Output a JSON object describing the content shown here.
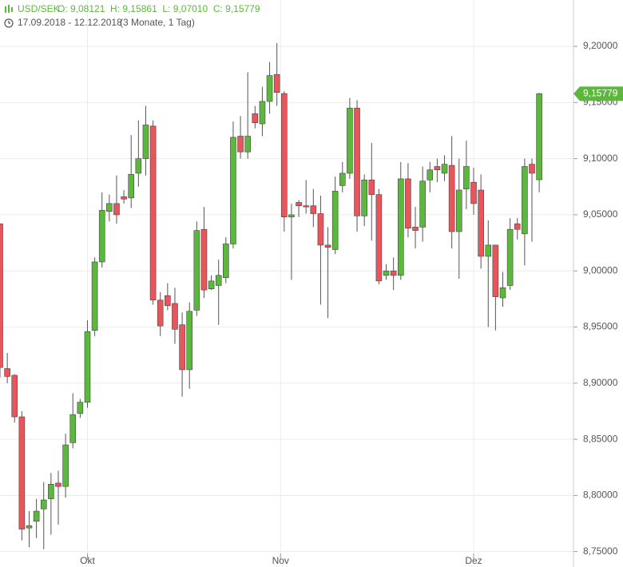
{
  "chart_data": {
    "type": "candlestick",
    "title": "USD/SEK",
    "ohlc_text": "O: 9,08121  H: 9,15861  L: 9,07010  C: 9,15779",
    "subtitle": "17.09.2018 - 12.12.2018",
    "period": "(3 Monate, 1 Tag)",
    "up_color": "#5cb83c",
    "down_color": "#e8555a",
    "grid": true,
    "ylim": [
      8.7455,
      9.2413
    ],
    "yticks": [
      {
        "value": 8.75,
        "label": "8,75000"
      },
      {
        "value": 8.8,
        "label": "8,80000"
      },
      {
        "value": 8.85,
        "label": "8,85000"
      },
      {
        "value": 8.9,
        "label": "8,90000"
      },
      {
        "value": 8.95,
        "label": "8,95000"
      },
      {
        "value": 9.0,
        "label": "9,00000"
      },
      {
        "value": 9.05,
        "label": "9,05000"
      },
      {
        "value": 9.1,
        "label": "9,10000"
      },
      {
        "value": 9.15,
        "label": "9,15000"
      },
      {
        "value": 9.2,
        "label": "9,20000"
      }
    ],
    "xlim": [
      0,
      78.7
    ],
    "xticks": [
      {
        "value": 12,
        "label": "Okt"
      },
      {
        "value": 38.5,
        "label": "Nov"
      },
      {
        "value": 65,
        "label": "Dez"
      }
    ],
    "last_price": {
      "value": 9.15779,
      "label": "9,15779"
    },
    "open": [
      9.042,
      8.913,
      8.907,
      8.87,
      8.771,
      8.777,
      8.788,
      8.797,
      8.811,
      8.808,
      8.847,
      8.873,
      8.883,
      8.947,
      9.008,
      9.053,
      9.06,
      9.066,
      9.065,
      9.087,
      9.1,
      9.129,
      8.974,
      8.978,
      8.971,
      8.952,
      8.912,
      8.965,
      9.037,
      8.984,
      8.987,
      8.994,
      9.024,
      9.12,
      9.106,
      9.14,
      9.131,
      9.151,
      9.175,
      9.158,
      9.048,
      9.061,
      9.058,
      9.058,
      9.051,
      9.023,
      9.019,
      9.076,
      9.087,
      9.145,
      9.049,
      9.081,
      9.068,
      8.996,
      9.0,
      8.996,
      9.082,
      9.039,
      9.039,
      9.081,
      9.093,
      9.087,
      9.094,
      9.035,
      9.073,
      9.079,
      9.072,
      9.013,
      9.023,
      8.976,
      8.987,
      9.042,
      9.033,
      9.095,
      9.08121
    ],
    "high": [
      9.042,
      8.927,
      8.908,
      8.875,
      8.786,
      8.797,
      8.812,
      8.82,
      8.822,
      8.855,
      8.891,
      8.886,
      8.956,
      9.012,
      9.07,
      9.068,
      9.085,
      9.072,
      9.121,
      9.134,
      9.147,
      9.134,
      8.981,
      8.989,
      8.985,
      8.963,
      8.972,
      9.044,
      9.057,
      8.996,
      9.01,
      9.03,
      9.133,
      9.138,
      9.177,
      9.147,
      9.164,
      9.186,
      9.203,
      9.16,
      9.06,
      9.063,
      9.081,
      9.073,
      9.067,
      9.039,
      9.084,
      9.097,
      9.154,
      9.152,
      9.086,
      9.114,
      9.073,
      9.006,
      9.012,
      9.097,
      9.096,
      9.057,
      9.093,
      9.097,
      9.1,
      9.103,
      9.12,
      9.1,
      9.116,
      9.092,
      9.086,
      9.045,
      9.023,
      8.999,
      9.047,
      9.047,
      9.1,
      9.1,
      9.15861
    ],
    "low": [
      8.905,
      8.9,
      8.865,
      8.76,
      8.754,
      8.762,
      8.752,
      8.765,
      8.774,
      8.798,
      8.842,
      8.869,
      8.878,
      8.942,
      9.003,
      9.044,
      9.042,
      9.06,
      9.056,
      9.075,
      9.085,
      8.97,
      8.942,
      8.965,
      8.935,
      8.888,
      8.895,
      8.96,
      8.976,
      8.983,
      8.952,
      8.989,
      9.02,
      9.1,
      9.1,
      9.127,
      9.12,
      9.14,
      9.147,
      9.035,
      8.992,
      9.048,
      9.051,
      9.039,
      8.97,
      8.958,
      9.015,
      9.07,
      9.082,
      9.035,
      9.04,
      9.027,
      8.988,
      8.992,
      8.983,
      8.992,
      9.03,
      9.02,
      9.026,
      9.07,
      9.079,
      9.08,
      9.02,
      8.993,
      9.055,
      9.05,
      9.002,
      8.95,
      8.947,
      8.968,
      8.983,
      9.028,
      9.005,
      9.026,
      9.0701
    ],
    "close": [
      8.914,
      8.906,
      8.87,
      8.77,
      8.773,
      8.786,
      8.796,
      8.81,
      8.808,
      8.845,
      8.872,
      8.883,
      8.946,
      9.008,
      9.054,
      9.06,
      9.05,
      9.064,
      9.086,
      9.1,
      9.13,
      8.974,
      8.951,
      8.969,
      8.948,
      8.912,
      8.964,
      9.036,
      8.983,
      8.991,
      8.996,
      9.024,
      9.119,
      9.106,
      9.12,
      9.132,
      9.151,
      9.174,
      9.159,
      9.048,
      9.05,
      9.058,
      9.057,
      9.051,
      9.023,
      9.021,
      9.071,
      9.087,
      9.145,
      9.049,
      9.081,
      9.068,
      8.991,
      9.0,
      8.996,
      9.082,
      9.038,
      9.036,
      9.08,
      9.09,
      9.09,
      9.095,
      9.035,
      9.072,
      9.093,
      9.06,
      9.013,
      9.023,
      8.977,
      8.985,
      9.037,
      9.037,
      9.093,
      9.087,
      9.15779
    ]
  }
}
